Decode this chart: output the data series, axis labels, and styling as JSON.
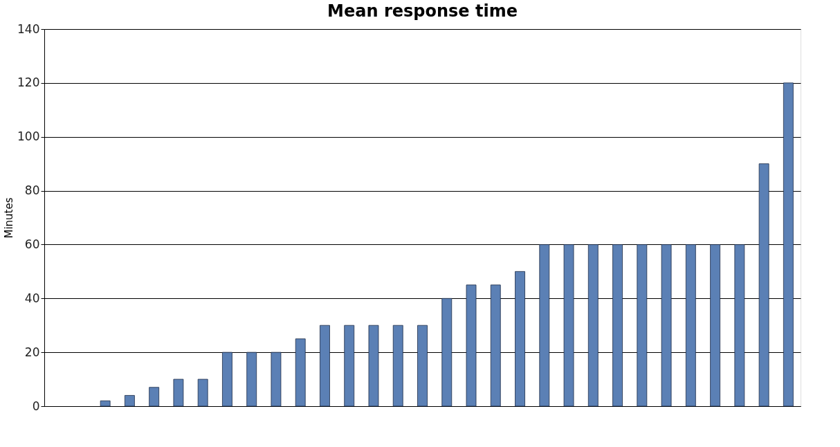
{
  "chart_data": {
    "type": "bar",
    "title": "Mean response time",
    "ylabel": "Minutes",
    "categories": [
      null,
      null,
      null,
      null,
      null,
      null,
      null,
      null,
      null,
      null,
      null,
      null,
      null,
      null,
      null,
      null,
      null,
      null,
      null,
      null,
      null,
      null,
      null,
      null,
      null,
      null,
      null,
      null,
      null,
      null,
      null
    ],
    "values": [
      null,
      null,
      2,
      4,
      7,
      10,
      10,
      20,
      20,
      20,
      25,
      30,
      30,
      30,
      30,
      30,
      40,
      45,
      45,
      50,
      60,
      60,
      60,
      60,
      60,
      60,
      60,
      60,
      60,
      90,
      120
    ],
    "color": "#5b80b5",
    "ylim": [
      0,
      140
    ],
    "yticks": [
      0,
      20,
      40,
      60,
      80,
      100,
      120,
      140
    ],
    "grid": "y",
    "tick_labels": "y"
  }
}
